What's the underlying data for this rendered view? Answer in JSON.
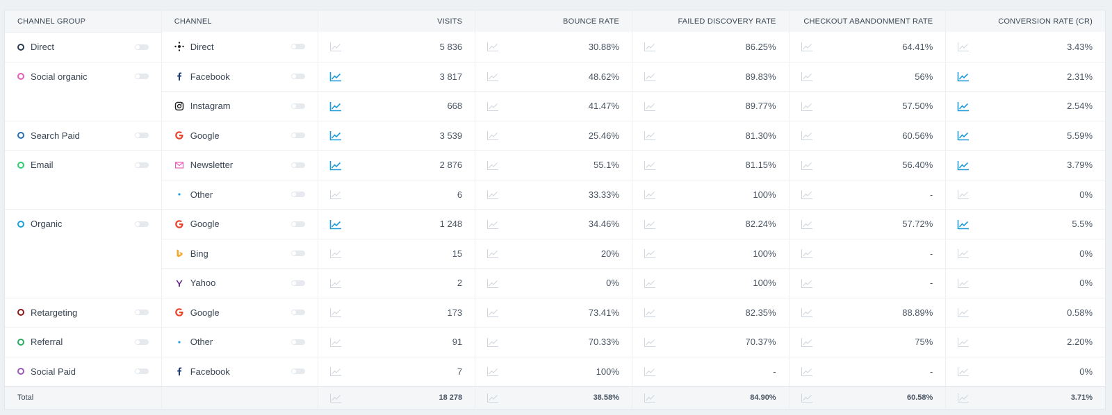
{
  "headers": {
    "group": "CHANNEL GROUP",
    "channel": "CHANNEL",
    "metrics": [
      "VISITS",
      "BOUNCE RATE",
      "FAILED DISCOVERY RATE",
      "CHECKOUT ABANDONMENT RATE",
      "CONVERSION RATE (CR)"
    ]
  },
  "colors": {
    "spark_active": "#1e9bd7",
    "spark_inactive": "#cfd5dc"
  },
  "rows": [
    {
      "group": "Direct",
      "group_color": "#2c3e50",
      "channel": "Direct",
      "icon": "direct-icon",
      "values": [
        "5 836",
        "30.88%",
        "86.25%",
        "64.41%",
        "3.43%"
      ],
      "active": [
        false,
        false,
        false,
        false,
        false
      ]
    },
    {
      "group": "Social organic",
      "group_color": "#e85db4",
      "channel": "Facebook",
      "icon": "facebook-icon",
      "values": [
        "3 817",
        "48.62%",
        "89.83%",
        "56%",
        "2.31%"
      ],
      "active": [
        true,
        false,
        false,
        false,
        true
      ]
    },
    {
      "group": "",
      "group_color": "",
      "channel": "Instagram",
      "icon": "instagram-icon",
      "values": [
        "668",
        "41.47%",
        "89.77%",
        "57.50%",
        "2.54%"
      ],
      "active": [
        true,
        false,
        false,
        false,
        true
      ]
    },
    {
      "group": "Search Paid",
      "group_color": "#2a6fb3",
      "channel": "Google",
      "icon": "google-icon",
      "values": [
        "3 539",
        "25.46%",
        "81.30%",
        "60.56%",
        "5.59%"
      ],
      "active": [
        true,
        false,
        false,
        false,
        true
      ]
    },
    {
      "group": "Email",
      "group_color": "#2ecc71",
      "channel": "Newsletter",
      "icon": "mail-icon",
      "values": [
        "2 876",
        "55.1%",
        "81.15%",
        "56.40%",
        "3.79%"
      ],
      "active": [
        true,
        false,
        false,
        false,
        true
      ]
    },
    {
      "group": "",
      "group_color": "",
      "channel": "Other",
      "icon": "dot-icon",
      "values": [
        "6",
        "33.33%",
        "100%",
        "-",
        "0%"
      ],
      "active": [
        false,
        false,
        false,
        false,
        false
      ]
    },
    {
      "group": "Organic",
      "group_color": "#1aa0e0",
      "channel": "Google",
      "icon": "google-icon",
      "values": [
        "1 248",
        "34.46%",
        "82.24%",
        "57.72%",
        "5.5%"
      ],
      "active": [
        true,
        false,
        false,
        false,
        true
      ]
    },
    {
      "group": "",
      "group_color": "",
      "channel": "Bing",
      "icon": "bing-icon",
      "values": [
        "15",
        "20%",
        "100%",
        "-",
        "0%"
      ],
      "active": [
        false,
        false,
        false,
        false,
        false
      ]
    },
    {
      "group": "",
      "group_color": "",
      "channel": "Yahoo",
      "icon": "yahoo-icon",
      "values": [
        "2",
        "0%",
        "100%",
        "-",
        "0%"
      ],
      "active": [
        false,
        false,
        false,
        false,
        false
      ]
    },
    {
      "group": "Retargeting",
      "group_color": "#8e1b1b",
      "channel": "Google",
      "icon": "google-icon",
      "values": [
        "173",
        "73.41%",
        "82.35%",
        "88.89%",
        "0.58%"
      ],
      "active": [
        false,
        false,
        false,
        false,
        false
      ]
    },
    {
      "group": "Referral",
      "group_color": "#27ae60",
      "channel": "Other",
      "icon": "dot-icon",
      "values": [
        "91",
        "70.33%",
        "70.37%",
        "75%",
        "2.20%"
      ],
      "active": [
        false,
        false,
        false,
        false,
        false
      ]
    },
    {
      "group": "Social Paid",
      "group_color": "#9b59b6",
      "channel": "Facebook",
      "icon": "facebook-icon",
      "values": [
        "7",
        "100%",
        "-",
        "-",
        "0%"
      ],
      "active": [
        false,
        false,
        false,
        false,
        false
      ]
    }
  ],
  "total": {
    "label": "Total",
    "values": [
      "18 278",
      "38.58%",
      "84.90%",
      "60.58%",
      "3.71%"
    ]
  }
}
